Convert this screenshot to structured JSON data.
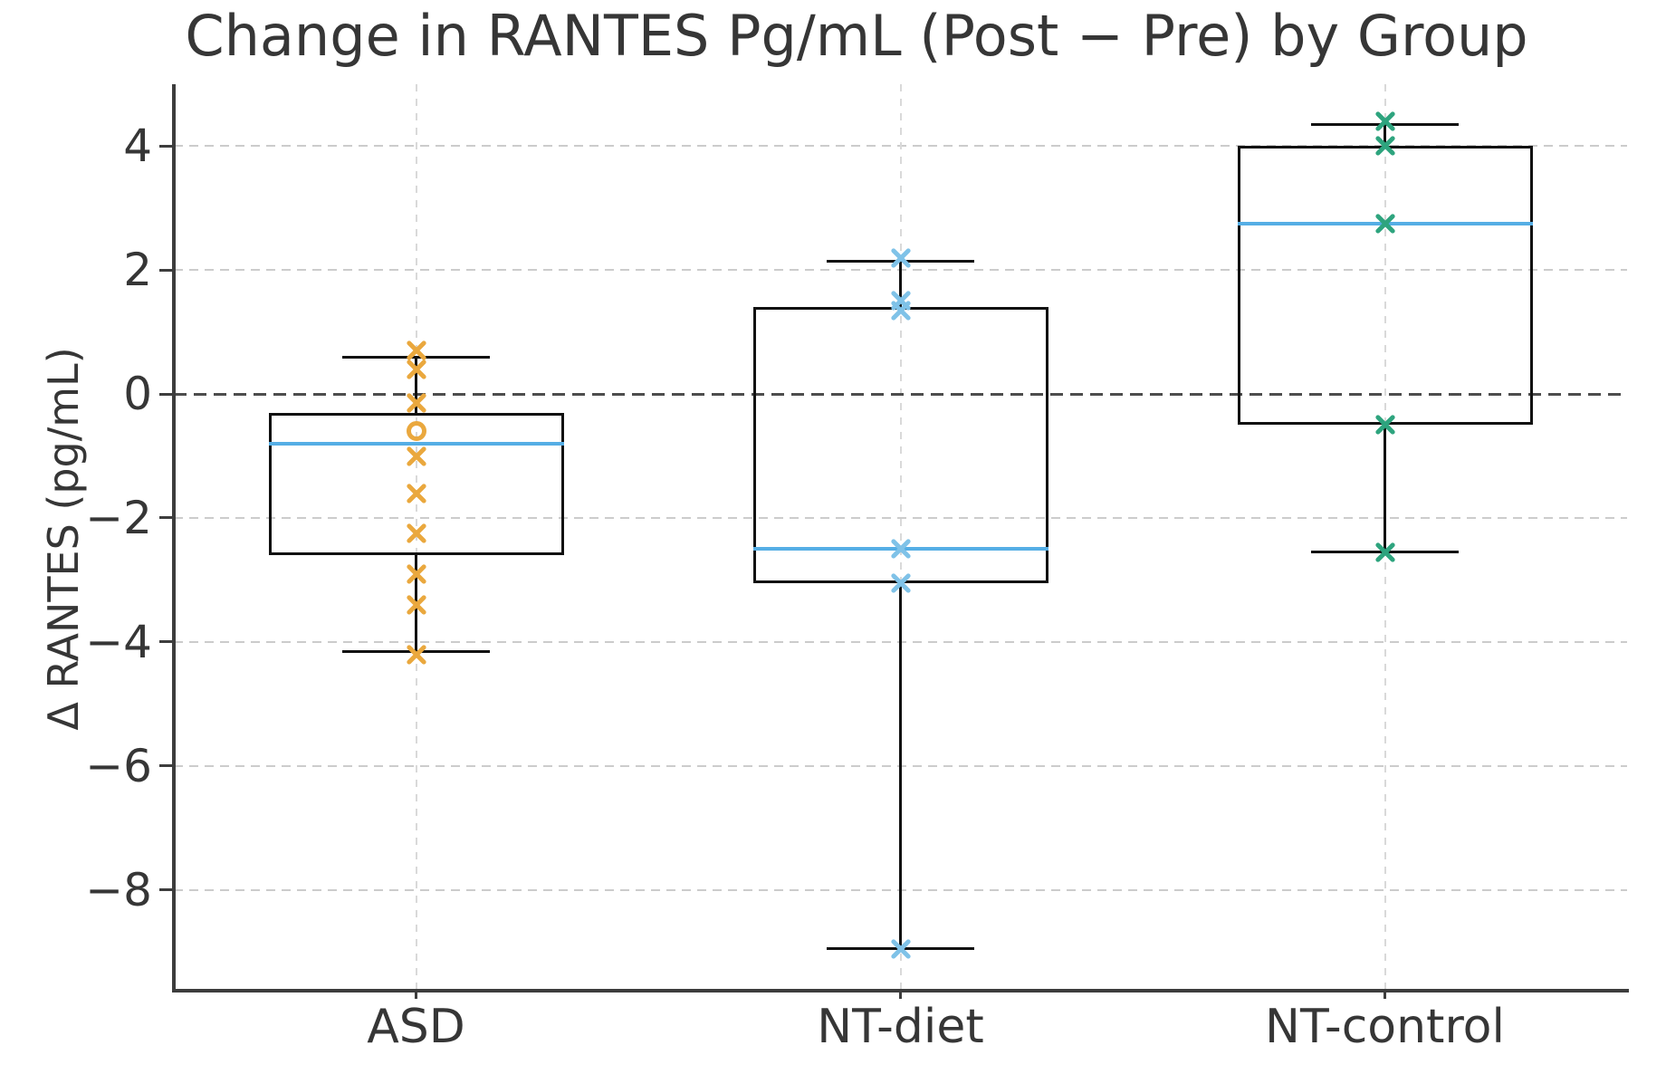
{
  "chart_data": {
    "type": "boxplot",
    "title": "Change in RANTES Pg/mL (Post − Pre) by Group",
    "ylabel": "Δ RANTES (pg/mL)",
    "xlabel": "",
    "categories": [
      "ASD",
      "NT-diet",
      "NT-control"
    ],
    "ylim": [
      -9.6,
      5.0
    ],
    "yticks": {
      "values": [
        4,
        2,
        0,
        -2,
        -4,
        -6,
        -8
      ],
      "labels": [
        "4",
        "2",
        "0",
        "−2",
        "−4",
        "−6",
        "−8"
      ]
    },
    "layout_hints": {
      "grid_horizontal": "light gray dashed at every y tick",
      "grid_vertical": "light gray dashed at every category",
      "zero_reference_line": "dark gray dashed at y=0",
      "spines": "left and bottom only",
      "legend": "none"
    },
    "colors": {
      "median_line": "#55AEE5",
      "box_line": "#111111",
      "axis_text": "#363636",
      "asd_marker": "#EAA83E",
      "nt_diet_marker": "#7FC2E8",
      "nt_control_marker": "#2EA47E"
    },
    "groups": [
      {
        "name": "ASD",
        "marker_color": "#EAA83E",
        "box": {
          "q1": -2.6,
          "median": -0.8,
          "q3": -0.3,
          "whisker_low": -4.15,
          "whisker_high": 0.6
        },
        "points_x": [
          0.7,
          0.4,
          -0.15,
          -1.0,
          -1.6,
          -2.25,
          -2.9,
          -3.4,
          -4.2
        ],
        "points_circle": [
          -0.6
        ]
      },
      {
        "name": "NT-diet",
        "marker_color": "#7FC2E8",
        "box": {
          "q1": -3.05,
          "median": -2.5,
          "q3": 1.4,
          "whisker_low": -8.95,
          "whisker_high": 2.15
        },
        "points_x": [
          2.2,
          1.5,
          1.35,
          -2.5,
          -3.05,
          -8.95
        ],
        "points_circle": []
      },
      {
        "name": "NT-control",
        "marker_color": "#2EA47E",
        "box": {
          "q1": -0.5,
          "median": 2.75,
          "q3": 4.0,
          "whisker_low": -2.55,
          "whisker_high": 4.35
        },
        "points_x": [
          4.4,
          4.0,
          2.75,
          -0.5,
          -2.55
        ],
        "points_circle": []
      }
    ]
  }
}
